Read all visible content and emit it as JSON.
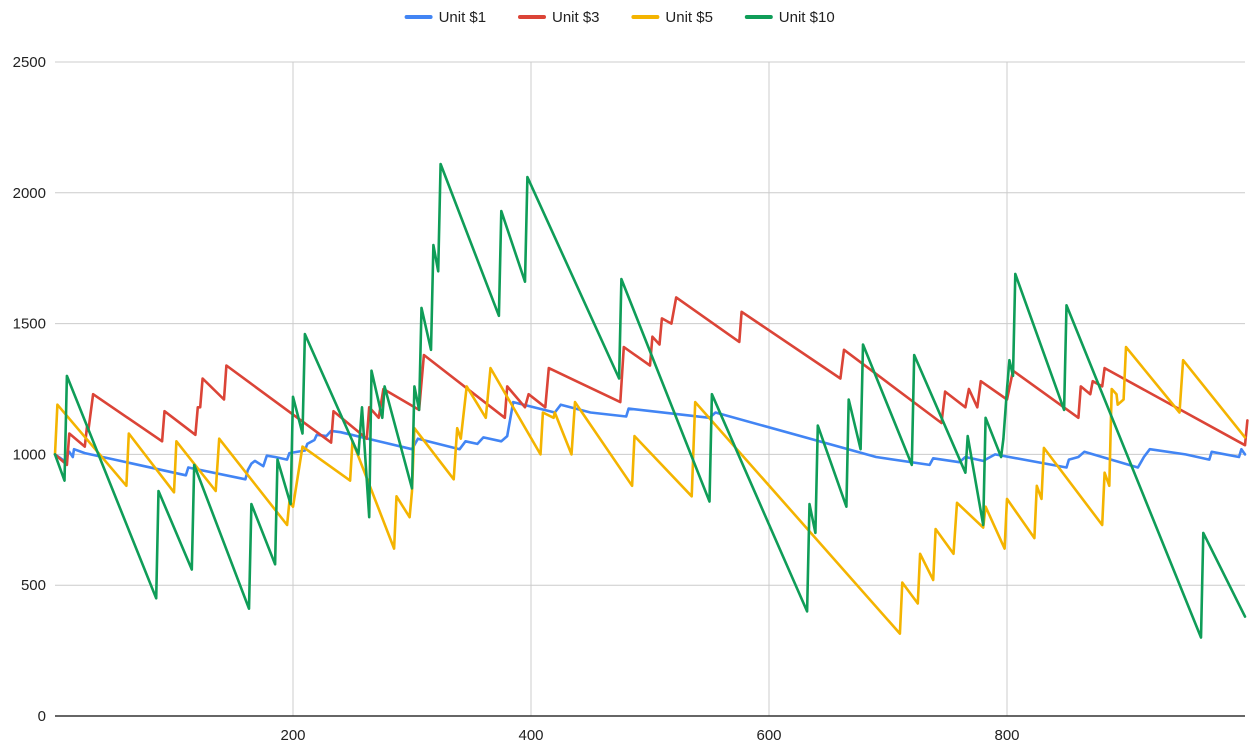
{
  "chart_data": {
    "type": "line",
    "title": "",
    "xlabel": "",
    "ylabel": "",
    "xlim": [
      0,
      1000
    ],
    "ylim": [
      0,
      2500
    ],
    "x_ticks": [
      200,
      400,
      600,
      800
    ],
    "y_ticks": [
      0,
      500,
      1000,
      1500,
      2000,
      2500
    ],
    "grid": true,
    "legend_position": "top",
    "series": [
      {
        "name": "Unit $1",
        "color": "#4285f4",
        "points": [
          [
            0,
            1000
          ],
          [
            8,
            975
          ],
          [
            12,
            1010
          ],
          [
            15,
            990
          ],
          [
            16,
            1020
          ],
          [
            25,
            1005
          ],
          [
            110,
            920
          ],
          [
            112,
            950
          ],
          [
            160,
            905
          ],
          [
            162,
            940
          ],
          [
            165,
            965
          ],
          [
            168,
            975
          ],
          [
            175,
            955
          ],
          [
            178,
            995
          ],
          [
            185,
            990
          ],
          [
            195,
            980
          ],
          [
            197,
            1005
          ],
          [
            210,
            1015
          ],
          [
            212,
            1040
          ],
          [
            218,
            1055
          ],
          [
            220,
            1075
          ],
          [
            228,
            1070
          ],
          [
            232,
            1090
          ],
          [
            240,
            1085
          ],
          [
            300,
            1020
          ],
          [
            305,
            1060
          ],
          [
            340,
            1020
          ],
          [
            345,
            1050
          ],
          [
            355,
            1040
          ],
          [
            360,
            1065
          ],
          [
            375,
            1050
          ],
          [
            380,
            1070
          ],
          [
            385,
            1200
          ],
          [
            420,
            1160
          ],
          [
            425,
            1190
          ],
          [
            450,
            1160
          ],
          [
            480,
            1145
          ],
          [
            482,
            1175
          ],
          [
            550,
            1140
          ],
          [
            555,
            1160
          ],
          [
            690,
            990
          ],
          [
            735,
            960
          ],
          [
            738,
            985
          ],
          [
            760,
            970
          ],
          [
            765,
            990
          ],
          [
            780,
            975
          ],
          [
            790,
            1000
          ],
          [
            850,
            950
          ],
          [
            852,
            980
          ],
          [
            860,
            990
          ],
          [
            865,
            1010
          ],
          [
            910,
            950
          ],
          [
            915,
            990
          ],
          [
            920,
            1020
          ],
          [
            950,
            1000
          ],
          [
            970,
            980
          ],
          [
            972,
            1010
          ],
          [
            995,
            990
          ],
          [
            997,
            1020
          ],
          [
            1000,
            1000
          ]
        ]
      },
      {
        "name": "Unit $3",
        "color": "#db4437",
        "points": [
          [
            0,
            1000
          ],
          [
            10,
            960
          ],
          [
            12,
            1080
          ],
          [
            25,
            1030
          ],
          [
            27,
            1110
          ],
          [
            28,
            1090
          ],
          [
            32,
            1230
          ],
          [
            90,
            1050
          ],
          [
            92,
            1165
          ],
          [
            118,
            1075
          ],
          [
            120,
            1180
          ],
          [
            122,
            1180
          ],
          [
            124,
            1290
          ],
          [
            142,
            1210
          ],
          [
            144,
            1340
          ],
          [
            232,
            1045
          ],
          [
            234,
            1165
          ],
          [
            262,
            1060
          ],
          [
            264,
            1180
          ],
          [
            272,
            1140
          ],
          [
            276,
            1250
          ],
          [
            306,
            1170
          ],
          [
            310,
            1380
          ],
          [
            378,
            1140
          ],
          [
            380,
            1260
          ],
          [
            395,
            1180
          ],
          [
            398,
            1230
          ],
          [
            412,
            1180
          ],
          [
            415,
            1330
          ],
          [
            475,
            1200
          ],
          [
            478,
            1410
          ],
          [
            500,
            1340
          ],
          [
            502,
            1450
          ],
          [
            508,
            1420
          ],
          [
            510,
            1520
          ],
          [
            518,
            1500
          ],
          [
            522,
            1600
          ],
          [
            575,
            1430
          ],
          [
            577,
            1545
          ],
          [
            660,
            1290
          ],
          [
            663,
            1400
          ],
          [
            745,
            1120
          ],
          [
            748,
            1240
          ],
          [
            765,
            1180
          ],
          [
            768,
            1250
          ],
          [
            775,
            1180
          ],
          [
            778,
            1280
          ],
          [
            800,
            1210
          ],
          [
            805,
            1320
          ],
          [
            860,
            1140
          ],
          [
            862,
            1260
          ],
          [
            870,
            1230
          ],
          [
            872,
            1280
          ],
          [
            880,
            1260
          ],
          [
            882,
            1330
          ],
          [
            1000,
            1035
          ],
          [
            1002,
            1130
          ]
        ]
      },
      {
        "name": "Unit $5",
        "color": "#f4b400",
        "points": [
          [
            0,
            1000
          ],
          [
            2,
            1190
          ],
          [
            60,
            880
          ],
          [
            62,
            1080
          ],
          [
            100,
            855
          ],
          [
            102,
            1050
          ],
          [
            135,
            860
          ],
          [
            138,
            1060
          ],
          [
            195,
            730
          ],
          [
            197,
            820
          ],
          [
            200,
            800
          ],
          [
            208,
            1030
          ],
          [
            248,
            900
          ],
          [
            250,
            1050
          ],
          [
            285,
            640
          ],
          [
            287,
            840
          ],
          [
            298,
            760
          ],
          [
            300,
            860
          ],
          [
            302,
            1100
          ],
          [
            335,
            905
          ],
          [
            338,
            1100
          ],
          [
            341,
            1060
          ],
          [
            346,
            1260
          ],
          [
            362,
            1140
          ],
          [
            366,
            1330
          ],
          [
            408,
            1000
          ],
          [
            410,
            1160
          ],
          [
            419,
            1140
          ],
          [
            420,
            1160
          ],
          [
            434,
            1000
          ],
          [
            437,
            1200
          ],
          [
            485,
            880
          ],
          [
            487,
            1070
          ],
          [
            535,
            840
          ],
          [
            538,
            1200
          ],
          [
            710,
            315
          ],
          [
            712,
            510
          ],
          [
            725,
            430
          ],
          [
            727,
            620
          ],
          [
            738,
            520
          ],
          [
            740,
            715
          ],
          [
            755,
            620
          ],
          [
            758,
            815
          ],
          [
            780,
            720
          ],
          [
            782,
            800
          ],
          [
            798,
            640
          ],
          [
            800,
            830
          ],
          [
            823,
            680
          ],
          [
            825,
            880
          ],
          [
            829,
            830
          ],
          [
            831,
            1025
          ],
          [
            880,
            730
          ],
          [
            882,
            930
          ],
          [
            886,
            880
          ],
          [
            888,
            1250
          ],
          [
            892,
            1230
          ],
          [
            893,
            1190
          ],
          [
            898,
            1210
          ],
          [
            900,
            1410
          ],
          [
            945,
            1160
          ],
          [
            948,
            1360
          ],
          [
            1000,
            1065
          ]
        ]
      },
      {
        "name": "Unit $10",
        "color": "#0f9d58",
        "points": [
          [
            0,
            1000
          ],
          [
            8,
            900
          ],
          [
            10,
            1300
          ],
          [
            85,
            450
          ],
          [
            87,
            860
          ],
          [
            115,
            560
          ],
          [
            117,
            960
          ],
          [
            163,
            410
          ],
          [
            165,
            810
          ],
          [
            185,
            580
          ],
          [
            187,
            980
          ],
          [
            198,
            810
          ],
          [
            200,
            1220
          ],
          [
            208,
            1080
          ],
          [
            210,
            1460
          ],
          [
            255,
            1000
          ],
          [
            258,
            1180
          ],
          [
            264,
            760
          ],
          [
            266,
            1320
          ],
          [
            275,
            1140
          ],
          [
            277,
            1260
          ],
          [
            300,
            870
          ],
          [
            302,
            1260
          ],
          [
            306,
            1170
          ],
          [
            308,
            1560
          ],
          [
            316,
            1400
          ],
          [
            318,
            1800
          ],
          [
            322,
            1700
          ],
          [
            324,
            2110
          ],
          [
            373,
            1530
          ],
          [
            375,
            1930
          ],
          [
            395,
            1660
          ],
          [
            397,
            2060
          ],
          [
            474,
            1290
          ],
          [
            476,
            1670
          ],
          [
            550,
            820
          ],
          [
            552,
            1230
          ],
          [
            632,
            400
          ],
          [
            634,
            810
          ],
          [
            639,
            700
          ],
          [
            641,
            1110
          ],
          [
            665,
            800
          ],
          [
            667,
            1210
          ],
          [
            677,
            1020
          ],
          [
            679,
            1420
          ],
          [
            720,
            960
          ],
          [
            722,
            1380
          ],
          [
            765,
            930
          ],
          [
            767,
            1070
          ],
          [
            780,
            730
          ],
          [
            782,
            1140
          ],
          [
            795,
            990
          ],
          [
            797,
            1060
          ],
          [
            800,
            1250
          ],
          [
            802,
            1360
          ],
          [
            805,
            1300
          ],
          [
            807,
            1690
          ],
          [
            848,
            1170
          ],
          [
            850,
            1570
          ],
          [
            963,
            300
          ],
          [
            965,
            700
          ],
          [
            1000,
            380
          ]
        ]
      }
    ]
  }
}
